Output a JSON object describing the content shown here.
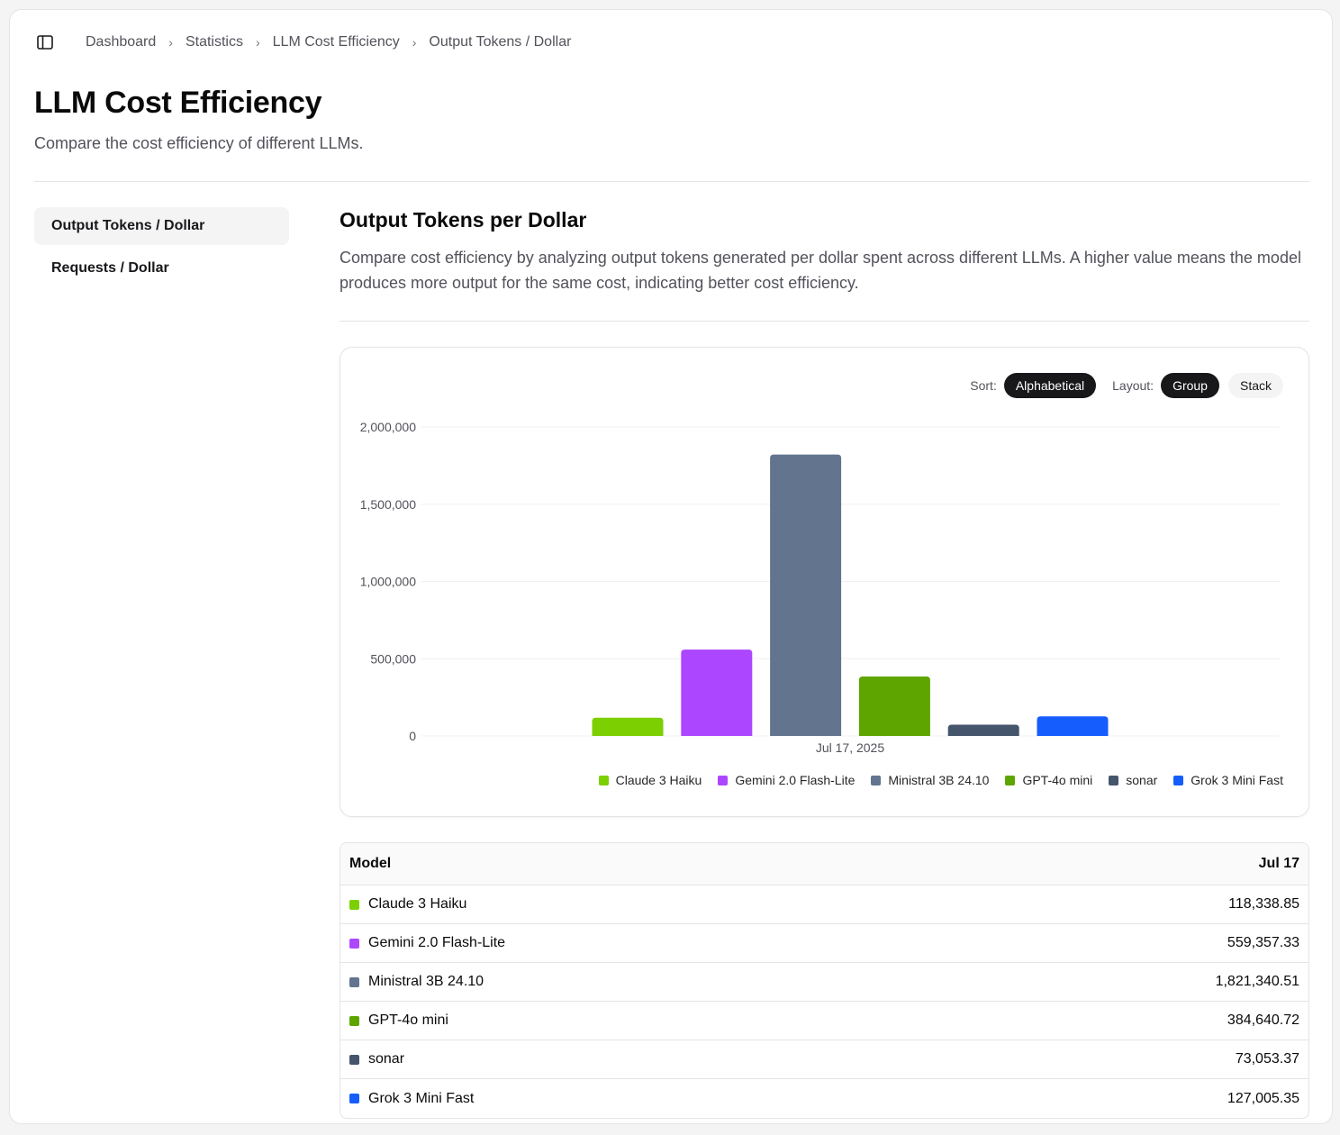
{
  "breadcrumb": [
    "Dashboard",
    "Statistics",
    "LLM Cost Efficiency",
    "Output Tokens / Dollar"
  ],
  "page": {
    "title": "LLM Cost Efficiency",
    "subtitle": "Compare the cost efficiency of different LLMs."
  },
  "nav": {
    "items": [
      {
        "label": "Output Tokens / Dollar",
        "active": true
      },
      {
        "label": "Requests / Dollar",
        "active": false
      }
    ]
  },
  "section": {
    "title": "Output Tokens per Dollar",
    "description": "Compare cost efficiency by analyzing output tokens generated per dollar spent across different LLMs. A higher value means the model produces more output for the same cost, indicating better cost efficiency."
  },
  "controls": {
    "sort_label": "Sort:",
    "sort_value": "Alphabetical",
    "layout_label": "Layout:",
    "layout_options": [
      "Group",
      "Stack"
    ],
    "layout_selected": "Group"
  },
  "colors": {
    "Claude 3 Haiku": "#7ccf00",
    "Gemini 2.0 Flash-Lite": "#ad46ff",
    "Ministral 3B 24.10": "#62748e",
    "GPT-4o mini": "#5ea500",
    "sonar": "#45556c",
    "Grok 3 Mini Fast": "#155dfc"
  },
  "chart_data": {
    "type": "bar",
    "categories": [
      "Jul 17, 2025"
    ],
    "series": [
      {
        "name": "Claude 3 Haiku",
        "values": [
          118338.85
        ]
      },
      {
        "name": "Gemini 2.0 Flash-Lite",
        "values": [
          559357.33
        ]
      },
      {
        "name": "Ministral 3B 24.10",
        "values": [
          1821340.51
        ]
      },
      {
        "name": "GPT-4o mini",
        "values": [
          384640.72
        ]
      },
      {
        "name": "sonar",
        "values": [
          73053.37
        ]
      },
      {
        "name": "Grok 3 Mini Fast",
        "values": [
          127005.35
        ]
      }
    ],
    "yticks": [
      "2,000,000",
      "1,500,000",
      "1,000,000",
      "500,000",
      "0"
    ],
    "ylim": [
      0,
      2000000
    ],
    "grid": true,
    "legend": "bottom-right"
  },
  "table": {
    "headers": [
      "Model",
      "Jul 17"
    ],
    "rows": [
      {
        "model": "Claude 3 Haiku",
        "value": "118,338.85"
      },
      {
        "model": "Gemini 2.0 Flash-Lite",
        "value": "559,357.33"
      },
      {
        "model": "Ministral 3B 24.10",
        "value": "1,821,340.51"
      },
      {
        "model": "GPT-4o mini",
        "value": "384,640.72"
      },
      {
        "model": "sonar",
        "value": "73,053.37"
      },
      {
        "model": "Grok 3 Mini Fast",
        "value": "127,005.35"
      }
    ]
  }
}
